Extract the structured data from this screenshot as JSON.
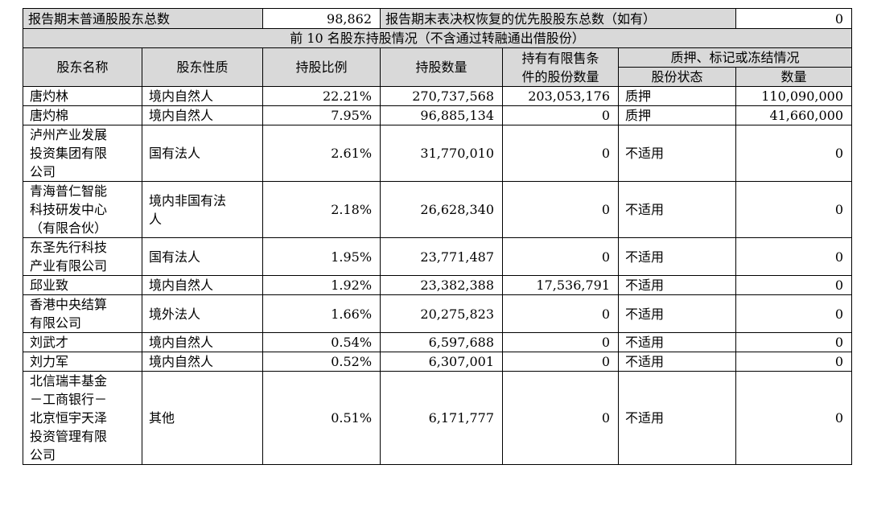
{
  "summary": {
    "common_label": "报告期末普通股股东总数",
    "common_value": "98,862",
    "preferred_label": "报告期末表决权恢复的优先股股东总数（如有）",
    "preferred_value": "0"
  },
  "section_title": "前 10 名股东持股情况（不含通过转融通出借股份）",
  "headers": {
    "name": "股东名称",
    "nature": "股东性质",
    "ratio": "持股比例",
    "shares": "持股数量",
    "restricted_line1": "持有有限售条",
    "restricted_line2": "件的股份数量",
    "pledge_group": "质押、标记或冻结情况",
    "status": "股份状态",
    "quantity": "数量"
  },
  "rows": [
    {
      "name": "唐灼林",
      "nature": "境内自然人",
      "ratio": "22.21%",
      "shares": "270,737,568",
      "restricted": "203,053,176",
      "status": "质押",
      "quantity": "110,090,000"
    },
    {
      "name": "唐灼棉",
      "nature": "境内自然人",
      "ratio": "7.95%",
      "shares": "96,885,134",
      "restricted": "0",
      "status": "质押",
      "quantity": "41,660,000"
    },
    {
      "name": "泸州产业发展\n投资集团有限\n公司",
      "nature": "国有法人",
      "ratio": "2.61%",
      "shares": "31,770,010",
      "restricted": "0",
      "status": "不适用",
      "quantity": "0"
    },
    {
      "name": "青海普仁智能\n科技研发中心\n（有限合伙）",
      "nature": "境内非国有法\n人",
      "ratio": "2.18%",
      "shares": "26,628,340",
      "restricted": "0",
      "status": "不适用",
      "quantity": "0"
    },
    {
      "name": "东圣先行科技\n产业有限公司",
      "nature": "国有法人",
      "ratio": "1.95%",
      "shares": "23,771,487",
      "restricted": "0",
      "status": "不适用",
      "quantity": "0"
    },
    {
      "name": "邱业致",
      "nature": "境内自然人",
      "ratio": "1.92%",
      "shares": "23,382,388",
      "restricted": "17,536,791",
      "status": "不适用",
      "quantity": "0"
    },
    {
      "name": "香港中央结算\n有限公司",
      "nature": "境外法人",
      "ratio": "1.66%",
      "shares": "20,275,823",
      "restricted": "0",
      "status": "不适用",
      "quantity": "0"
    },
    {
      "name": "刘武才",
      "nature": "境内自然人",
      "ratio": "0.54%",
      "shares": "6,597,688",
      "restricted": "0",
      "status": "不适用",
      "quantity": "0"
    },
    {
      "name": "刘力军",
      "nature": "境内自然人",
      "ratio": "0.52%",
      "shares": "6,307,001",
      "restricted": "0",
      "status": "不适用",
      "quantity": "0"
    },
    {
      "name": "北信瑞丰基金\n－工商银行－\n北京恒宇天泽\n投资管理有限\n公司",
      "nature": "其他",
      "ratio": "0.51%",
      "shares": "6,171,777",
      "restricted": "0",
      "status": "不适用",
      "quantity": "0"
    }
  ]
}
